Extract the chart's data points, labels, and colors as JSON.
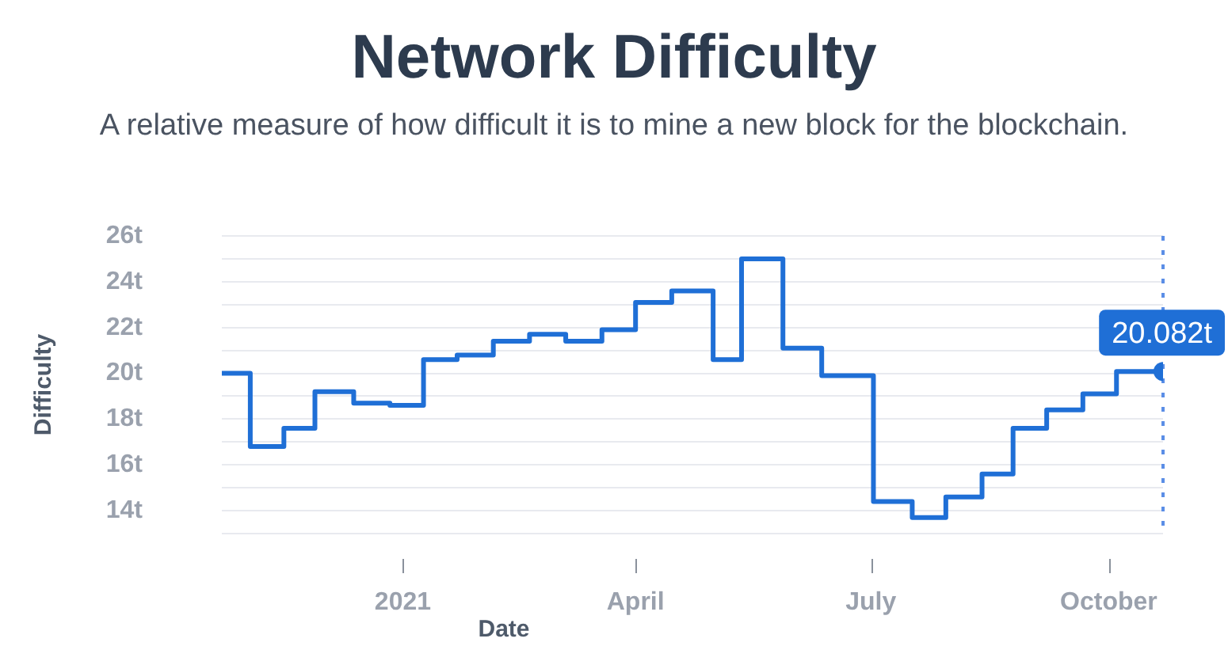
{
  "chart_data": {
    "type": "step",
    "title": "Network Difficulty",
    "subtitle": "A relative measure of how difficult it is to mine a new block for the blockchain.",
    "xlabel": "Date",
    "ylabel": "Difficulty",
    "x": [
      "2020-10-23",
      "2020-11-03",
      "2020-11-16",
      "2020-11-28",
      "2020-12-13",
      "2020-12-27",
      "2021-01-09",
      "2021-01-22",
      "2021-02-05",
      "2021-02-19",
      "2021-03-05",
      "2021-03-19",
      "2021-04-01",
      "2021-04-15",
      "2021-05-01",
      "2021-05-12",
      "2021-05-28",
      "2021-06-12",
      "2021-07-02",
      "2021-07-17",
      "2021-07-30",
      "2021-08-13",
      "2021-08-25",
      "2021-09-07",
      "2021-09-21",
      "2021-10-04",
      "2021-10-22"
    ],
    "values": [
      20.0,
      16.8,
      17.6,
      19.2,
      18.7,
      18.6,
      20.6,
      20.8,
      21.4,
      21.7,
      21.4,
      21.9,
      23.1,
      23.6,
      20.6,
      25.0,
      21.1,
      19.9,
      14.4,
      13.7,
      14.6,
      15.6,
      17.6,
      18.4,
      19.1,
      20.082,
      20.082
    ],
    "value_labels": [
      null,
      null,
      null,
      null,
      null,
      null,
      null,
      null,
      null,
      null,
      null,
      null,
      null,
      null,
      null,
      null,
      null,
      null,
      null,
      null,
      null,
      null,
      null,
      null,
      null,
      null,
      "20.082t"
    ],
    "color": "#1f6fd6",
    "xlim": [
      "2020-10-23",
      "2021-10-22"
    ],
    "xticks": [
      {
        "value": "2021-01-01",
        "label": "2021"
      },
      {
        "value": "2021-04-01",
        "label": "April"
      },
      {
        "value": "2021-07-01",
        "label": "July"
      },
      {
        "value": "2021-10-01",
        "label": "October"
      }
    ],
    "ylim": [
      13,
      26
    ],
    "yticks": [
      {
        "value": 13,
        "label": null
      },
      {
        "value": 14,
        "label": "14t"
      },
      {
        "value": 15,
        "label": null
      },
      {
        "value": 16,
        "label": "16t"
      },
      {
        "value": 17,
        "label": null
      },
      {
        "value": 18,
        "label": "18t"
      },
      {
        "value": 19,
        "label": null
      },
      {
        "value": 20,
        "label": "20t"
      },
      {
        "value": 21,
        "label": null
      },
      {
        "value": 22,
        "label": "22t"
      },
      {
        "value": 23,
        "label": null
      },
      {
        "value": 24,
        "label": "24t"
      },
      {
        "value": 25,
        "label": null
      },
      {
        "value": 26,
        "label": "26t"
      }
    ],
    "grid": "y",
    "marker": "none",
    "ref_lines": [
      {
        "axis": "x",
        "value": "2021-10-22",
        "color": "#5b8ee6",
        "line_style": "dotted"
      }
    ]
  }
}
